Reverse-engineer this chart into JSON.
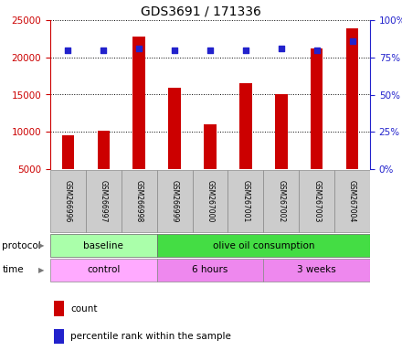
{
  "title": "GDS3691 / 171336",
  "samples": [
    "GSM266996",
    "GSM266997",
    "GSM266998",
    "GSM266999",
    "GSM267000",
    "GSM267001",
    "GSM267002",
    "GSM267003",
    "GSM267004"
  ],
  "counts": [
    9600,
    10100,
    22800,
    15900,
    11000,
    16500,
    15000,
    21200,
    23900
  ],
  "percentile_ranks_pct": [
    80,
    80,
    81,
    80,
    80,
    80,
    81,
    80,
    86
  ],
  "bar_color": "#cc0000",
  "dot_color": "#2222cc",
  "ylim_left": [
    5000,
    25000
  ],
  "yticks_left": [
    5000,
    10000,
    15000,
    20000,
    25000
  ],
  "ylim_right": [
    0,
    100
  ],
  "yticks_right": [
    0,
    25,
    50,
    75,
    100
  ],
  "protocol_groups": [
    {
      "label": "baseline",
      "start": 0,
      "end": 3,
      "color": "#aaffaa"
    },
    {
      "label": "olive oil consumption",
      "start": 3,
      "end": 9,
      "color": "#44dd44"
    }
  ],
  "time_groups": [
    {
      "label": "control",
      "start": 0,
      "end": 3,
      "color": "#ffaaff"
    },
    {
      "label": "6 hours",
      "start": 3,
      "end": 6,
      "color": "#ee88ee"
    },
    {
      "label": "3 weeks",
      "start": 6,
      "end": 9,
      "color": "#ee88ee"
    }
  ],
  "legend_count_label": "count",
  "legend_pct_label": "percentile rank within the sample",
  "left_axis_color": "#cc0000",
  "right_axis_color": "#2222cc",
  "background_color": "#ffffff"
}
